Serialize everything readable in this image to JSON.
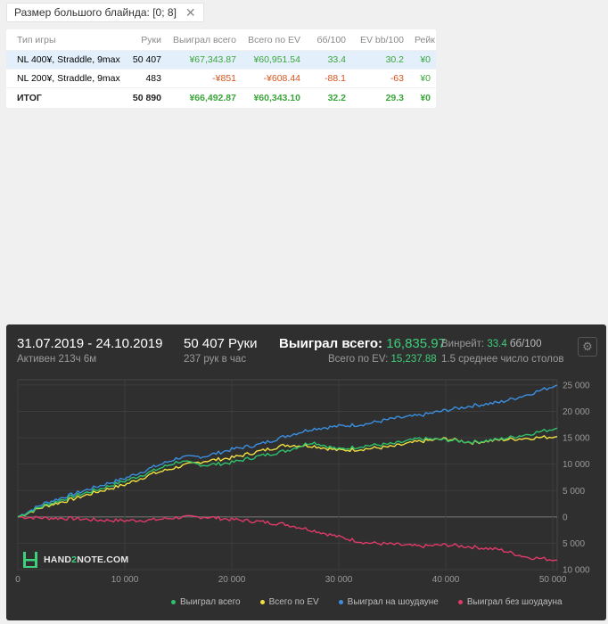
{
  "filter": {
    "label": "Размер большого блайнда: [0; 8]",
    "close": "✕"
  },
  "table": {
    "headers": [
      "Тип игры",
      "Руки",
      "Выиграл всего",
      "Всего по EV",
      "бб/100",
      "EV bb/100",
      "Рейк"
    ],
    "rows": [
      {
        "type": "NL 400¥, Straddle, 9max",
        "hands": "50 407",
        "won": "¥67,343.87",
        "ev": "¥60,951.54",
        "bb": "33.4",
        "evbb": "30.2",
        "rake": "¥0"
      },
      {
        "type": "NL 200¥, Straddle, 9max",
        "hands": "483",
        "won": "-¥851",
        "ev": "-¥608.44",
        "bb": "-88.1",
        "evbb": "-63",
        "rake": "¥0"
      }
    ],
    "total": {
      "type": "ИТОГ",
      "hands": "50 890",
      "won": "¥66,492.87",
      "ev": "¥60,343.10",
      "bb": "32.2",
      "evbb": "29.3",
      "rake": "¥0"
    }
  },
  "panel": {
    "date_range": "31.07.2019 - 24.10.2019",
    "active": "Активен 213ч 6м",
    "hands": "50 407 Руки",
    "hands_per_hour": "237 рук в час",
    "won_label": "Выиграл всего:",
    "won_value": "16,835.97",
    "ev_label": "Всего по EV:",
    "ev_value": "15,237.88",
    "winrate_label": "Винрейт:",
    "winrate_value": "33.4",
    "winrate_unit": "бб/100",
    "tables": "1.5 среднее число столов",
    "logo_a": "HAND",
    "logo_b": "2",
    "logo_c": "NOTE.COM"
  },
  "colors": {
    "won": "#2fc26b",
    "ev": "#f0e040",
    "showdown": "#3b8fe0",
    "no_showdown": "#e03a6a"
  },
  "chart_data": {
    "type": "line",
    "x_ticks": [
      "0",
      "10 000",
      "20 000",
      "30 000",
      "40 000",
      "50 000"
    ],
    "y_ticks": [
      "25 000",
      "20 000",
      "15 000",
      "10 000",
      "5 000",
      "0",
      "-5 000",
      "-10 000"
    ],
    "y_tick_labels": [
      "25 000",
      "20 000",
      "15 000",
      "10 000",
      "5 000",
      "0",
      "5 000",
      "10 000"
    ],
    "xlim": [
      0,
      50407
    ],
    "ylim": [
      -10000,
      26000
    ],
    "x": [
      0,
      2500,
      5000,
      7500,
      10000,
      12500,
      15000,
      17500,
      20000,
      22500,
      25000,
      27500,
      30000,
      32500,
      35000,
      37500,
      40000,
      42500,
      45000,
      47500,
      50407
    ],
    "series": [
      {
        "name": "Выиграл всего",
        "color": "#2fc26b",
        "values": [
          0,
          2200,
          3800,
          5200,
          6800,
          8600,
          10500,
          9800,
          10300,
          11500,
          12500,
          14200,
          12800,
          13500,
          13800,
          14800,
          14600,
          14200,
          14700,
          15600,
          16836
        ]
      },
      {
        "name": "Всего по EV",
        "color": "#f0e040",
        "values": [
          0,
          2000,
          3300,
          4800,
          6100,
          8100,
          9500,
          10600,
          11200,
          12400,
          13600,
          13500,
          12600,
          12900,
          13300,
          14300,
          14800,
          14100,
          14600,
          14900,
          15238
        ]
      },
      {
        "name": "Выиграл на шоудауне",
        "color": "#3b8fe0",
        "values": [
          0,
          2600,
          4200,
          5800,
          7300,
          9300,
          11200,
          11500,
          12800,
          13700,
          15300,
          16700,
          17200,
          17600,
          18600,
          19200,
          20200,
          21100,
          21700,
          23100,
          25000
        ]
      },
      {
        "name": "Выиграл без шоудауна",
        "color": "#e03a6a",
        "values": [
          0,
          -200,
          -300,
          -600,
          -700,
          -600,
          -100,
          0,
          -500,
          -900,
          -1400,
          -2500,
          -3800,
          -4900,
          -5200,
          -5600,
          -5300,
          -5700,
          -6200,
          -7600,
          -8200
        ]
      }
    ]
  }
}
